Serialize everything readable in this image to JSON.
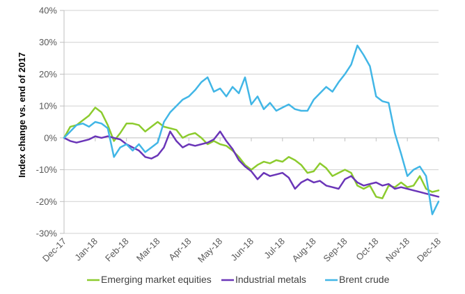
{
  "chart_data": {
    "type": "line",
    "title": "",
    "xlabel": "",
    "ylabel": "Index change vs. end of 2017",
    "ylim": [
      -0.3,
      0.4
    ],
    "yticks": [
      0.4,
      0.3,
      0.2,
      0.1,
      0.0,
      -0.1,
      -0.2,
      -0.3
    ],
    "ytick_labels": [
      "40%",
      "30%",
      "20%",
      "10%",
      "0%",
      "-10%",
      "-20%",
      "-30%"
    ],
    "xtick_labels": [
      "Dec-17",
      "Jan-18",
      "Feb-18",
      "Mar-18",
      "Apr-18",
      "May-18",
      "Jun-18",
      "Jul-18",
      "Aug-18",
      "Sep-18",
      "Oct-18",
      "Nov-18",
      "Dec-18"
    ],
    "x_unit": "months since Dec-17",
    "grid": true,
    "legend_position": "bottom",
    "series": [
      {
        "name": "Emerging market equities",
        "color": "#8CCB2E",
        "x": [
          0,
          0.2,
          0.4,
          0.6,
          0.8,
          1.0,
          1.2,
          1.4,
          1.6,
          1.8,
          2.0,
          2.2,
          2.4,
          2.6,
          2.8,
          3.0,
          3.2,
          3.4,
          3.6,
          3.8,
          4.0,
          4.2,
          4.4,
          4.6,
          4.8,
          5.0,
          5.2,
          5.4,
          5.6,
          5.8,
          6.0,
          6.2,
          6.4,
          6.6,
          6.8,
          7.0,
          7.2,
          7.4,
          7.6,
          7.8,
          8.0,
          8.2,
          8.4,
          8.6,
          8.8,
          9.0,
          9.2,
          9.4,
          9.6,
          9.8,
          10.0,
          10.2,
          10.4,
          10.6,
          10.8,
          11.0,
          11.2,
          11.4,
          11.6,
          11.8,
          12.0
        ],
        "values": [
          0,
          0.035,
          0.04,
          0.055,
          0.07,
          0.095,
          0.08,
          0.04,
          -0.01,
          0.015,
          0.045,
          0.045,
          0.04,
          0.02,
          0.035,
          0.05,
          0.035,
          0.03,
          0.025,
          0.0,
          0.01,
          0.015,
          0.0,
          -0.02,
          -0.01,
          -0.02,
          -0.025,
          -0.04,
          -0.06,
          -0.085,
          -0.1,
          -0.085,
          -0.075,
          -0.08,
          -0.07,
          -0.075,
          -0.06,
          -0.07,
          -0.085,
          -0.11,
          -0.105,
          -0.08,
          -0.095,
          -0.12,
          -0.11,
          -0.1,
          -0.11,
          -0.15,
          -0.16,
          -0.15,
          -0.185,
          -0.19,
          -0.15,
          -0.155,
          -0.14,
          -0.155,
          -0.15,
          -0.12,
          -0.16,
          -0.17,
          -0.165
        ]
      },
      {
        "name": "Industrial metals",
        "color": "#6A35B8",
        "x": [
          0,
          0.2,
          0.4,
          0.6,
          0.8,
          1.0,
          1.2,
          1.4,
          1.6,
          1.8,
          2.0,
          2.2,
          2.4,
          2.6,
          2.8,
          3.0,
          3.2,
          3.4,
          3.6,
          3.8,
          4.0,
          4.2,
          4.4,
          4.6,
          4.8,
          5.0,
          5.2,
          5.4,
          5.6,
          5.8,
          6.0,
          6.2,
          6.4,
          6.6,
          6.8,
          7.0,
          7.2,
          7.4,
          7.6,
          7.8,
          8.0,
          8.2,
          8.4,
          8.6,
          8.8,
          9.0,
          9.2,
          9.4,
          9.6,
          9.8,
          10.0,
          10.2,
          10.4,
          10.6,
          10.8,
          11.0,
          11.2,
          11.4,
          11.6,
          11.8,
          12.0
        ],
        "values": [
          0,
          -0.01,
          -0.015,
          -0.01,
          -0.005,
          0.005,
          0.0,
          0.005,
          0.0,
          -0.005,
          -0.02,
          -0.03,
          -0.04,
          -0.06,
          -0.065,
          -0.055,
          -0.03,
          0.02,
          -0.01,
          -0.03,
          -0.02,
          -0.025,
          -0.02,
          -0.015,
          -0.005,
          0.02,
          -0.01,
          -0.035,
          -0.07,
          -0.09,
          -0.105,
          -0.13,
          -0.11,
          -0.12,
          -0.115,
          -0.11,
          -0.125,
          -0.16,
          -0.14,
          -0.13,
          -0.14,
          -0.135,
          -0.15,
          -0.155,
          -0.16,
          -0.13,
          -0.12,
          -0.14,
          -0.15,
          -0.145,
          -0.14,
          -0.15,
          -0.145,
          -0.16,
          -0.155,
          -0.16,
          -0.165,
          -0.17,
          -0.175,
          -0.18,
          -0.185
        ]
      },
      {
        "name": "Brent crude",
        "color": "#41B6E6",
        "x": [
          0,
          0.2,
          0.4,
          0.6,
          0.8,
          1.0,
          1.2,
          1.4,
          1.6,
          1.8,
          2.0,
          2.2,
          2.4,
          2.6,
          2.8,
          3.0,
          3.2,
          3.4,
          3.6,
          3.8,
          4.0,
          4.2,
          4.4,
          4.6,
          4.8,
          5.0,
          5.2,
          5.4,
          5.6,
          5.8,
          6.0,
          6.2,
          6.4,
          6.6,
          6.8,
          7.0,
          7.2,
          7.4,
          7.6,
          7.8,
          8.0,
          8.2,
          8.4,
          8.6,
          8.8,
          9.0,
          9.2,
          9.4,
          9.6,
          9.8,
          10.0,
          10.2,
          10.4,
          10.6,
          10.8,
          11.0,
          11.2,
          11.4,
          11.6,
          11.8,
          12.0
        ],
        "values": [
          0,
          0.02,
          0.04,
          0.045,
          0.035,
          0.05,
          0.045,
          0.03,
          -0.06,
          -0.03,
          -0.02,
          -0.04,
          -0.02,
          -0.045,
          -0.03,
          -0.015,
          0.05,
          0.08,
          0.1,
          0.12,
          0.13,
          0.15,
          0.175,
          0.19,
          0.145,
          0.155,
          0.13,
          0.16,
          0.14,
          0.19,
          0.105,
          0.13,
          0.09,
          0.11,
          0.085,
          0.095,
          0.105,
          0.09,
          0.085,
          0.085,
          0.12,
          0.14,
          0.16,
          0.145,
          0.175,
          0.2,
          0.23,
          0.29,
          0.26,
          0.225,
          0.13,
          0.115,
          0.11,
          0.015,
          -0.05,
          -0.12,
          -0.1,
          -0.09,
          -0.12,
          -0.24,
          -0.2
        ],
        "annotations": []
      }
    ]
  }
}
